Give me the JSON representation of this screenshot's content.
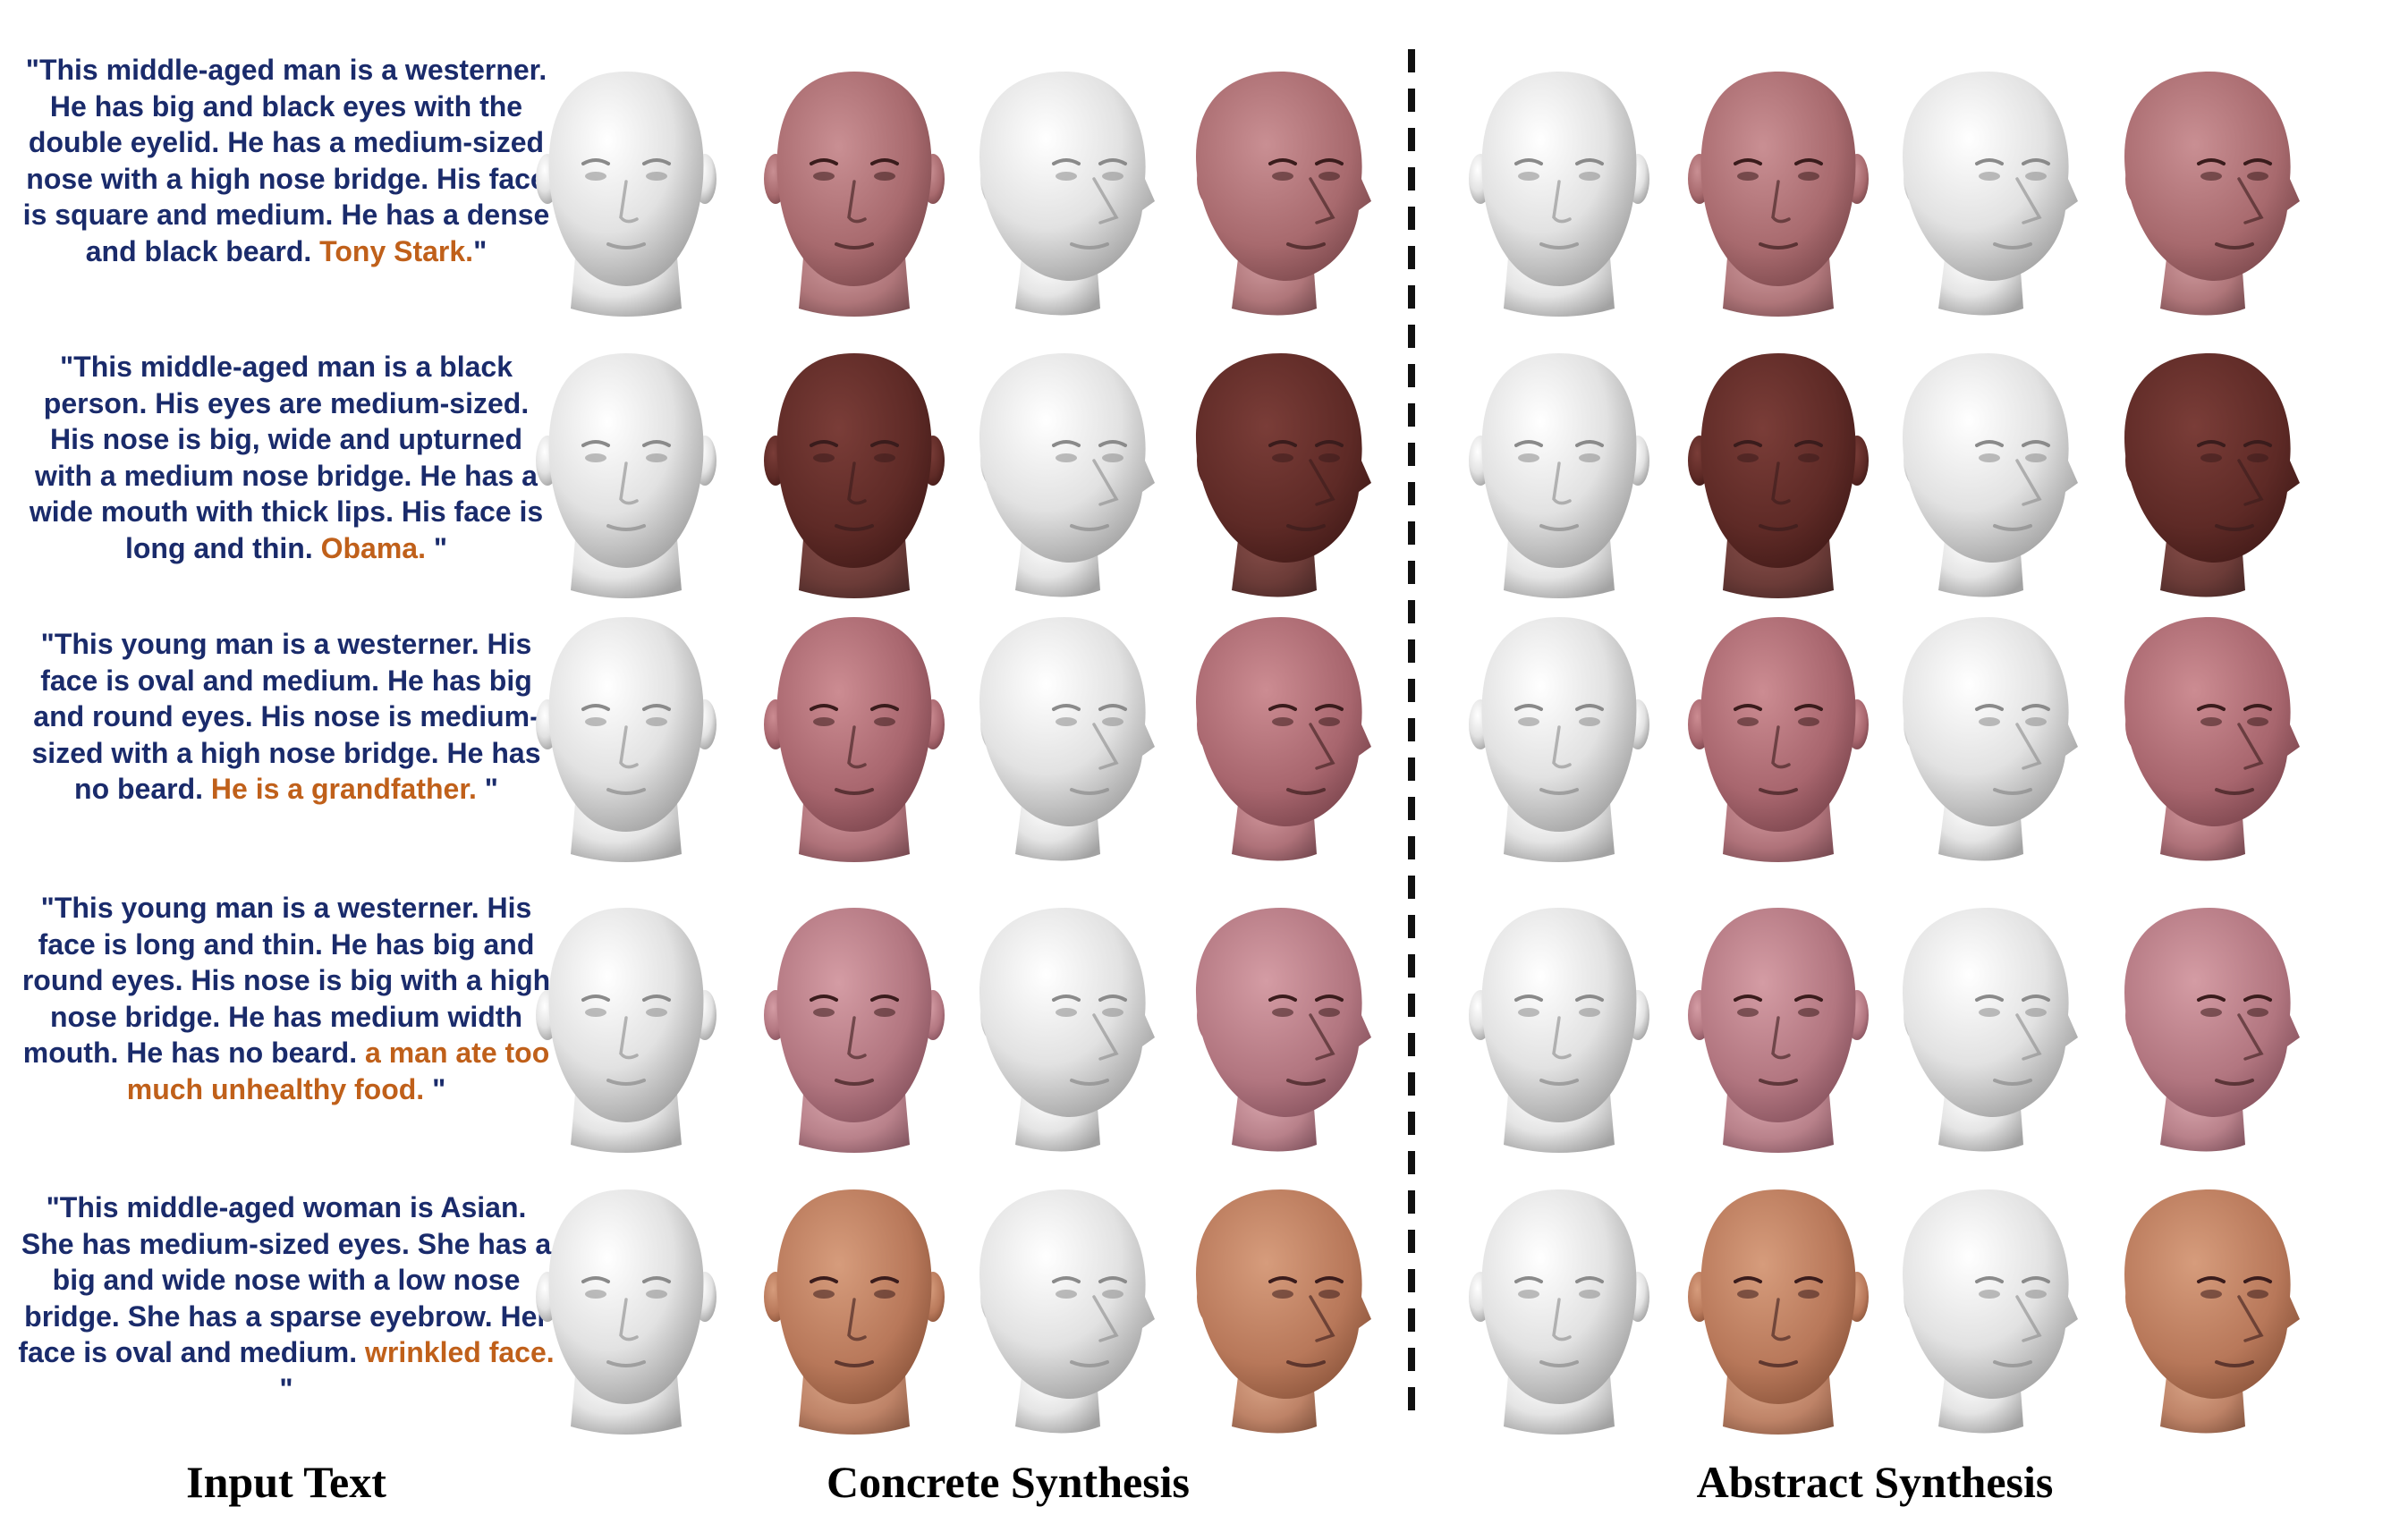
{
  "rows": [
    {
      "text_a": "\"This middle-aged man is a westerner. He has big and black eyes with the double eyelid. He has a medium-sized nose with a high nose bridge. His face is square and medium. He has a dense and black beard. ",
      "text_highlight": "Tony Stark.",
      "text_b": "\"",
      "face_identity": "western middle-aged man",
      "skin_color": "#a86a6e"
    },
    {
      "text_a": "\"This middle-aged man is a black person. His eyes are medium-sized. His nose is big, wide and upturned with a medium nose bridge. He has a wide mouth with thick lips. His face is long and thin. ",
      "text_highlight": "Obama.",
      "text_b": " \"",
      "face_identity": "black middle-aged man",
      "skin_color": "#5e2a26"
    },
    {
      "text_a": "\"This young man is a westerner. His face is oval and medium. He has big and round eyes. His nose is medium-sized with a high nose bridge. He has no beard. ",
      "text_highlight": "He is a grandfather.",
      "text_b": " \"",
      "face_identity": "western young man",
      "skin_color": "#a8666e"
    },
    {
      "text_a": "\"This young man is a westerner. His face is long and thin. He has big and round eyes. His nose is big with a high nose bridge. He has medium width mouth. He has no beard. ",
      "text_highlight": "a man ate too much unhealthy food.",
      "text_b": " \"",
      "face_identity": "western young man",
      "skin_color": "#b27680"
    },
    {
      "text_a": "\"This middle-aged woman is Asian. She has medium-sized eyes. She has a big and wide nose with a low nose bridge. She has a sparse eyebrow. Her face is oval and medium. ",
      "text_highlight": "wrinkled face.",
      "text_b": " \"",
      "face_identity": "asian middle-aged woman",
      "skin_color": "#b8785a"
    }
  ],
  "captions": {
    "input": "Input Text",
    "concrete": "Concrete Synthesis",
    "abstract": "Abstract Synthesis"
  },
  "colors": {
    "prompt_text": "#1a2b6b",
    "highlight_text": "#c0601a",
    "mesh_gray": "#d8d8d8",
    "divider": "#111111"
  },
  "column_views": [
    "mesh-front",
    "textured-front",
    "mesh-side",
    "textured-side",
    "mesh-front",
    "textured-front",
    "mesh-side",
    "textured-side"
  ]
}
